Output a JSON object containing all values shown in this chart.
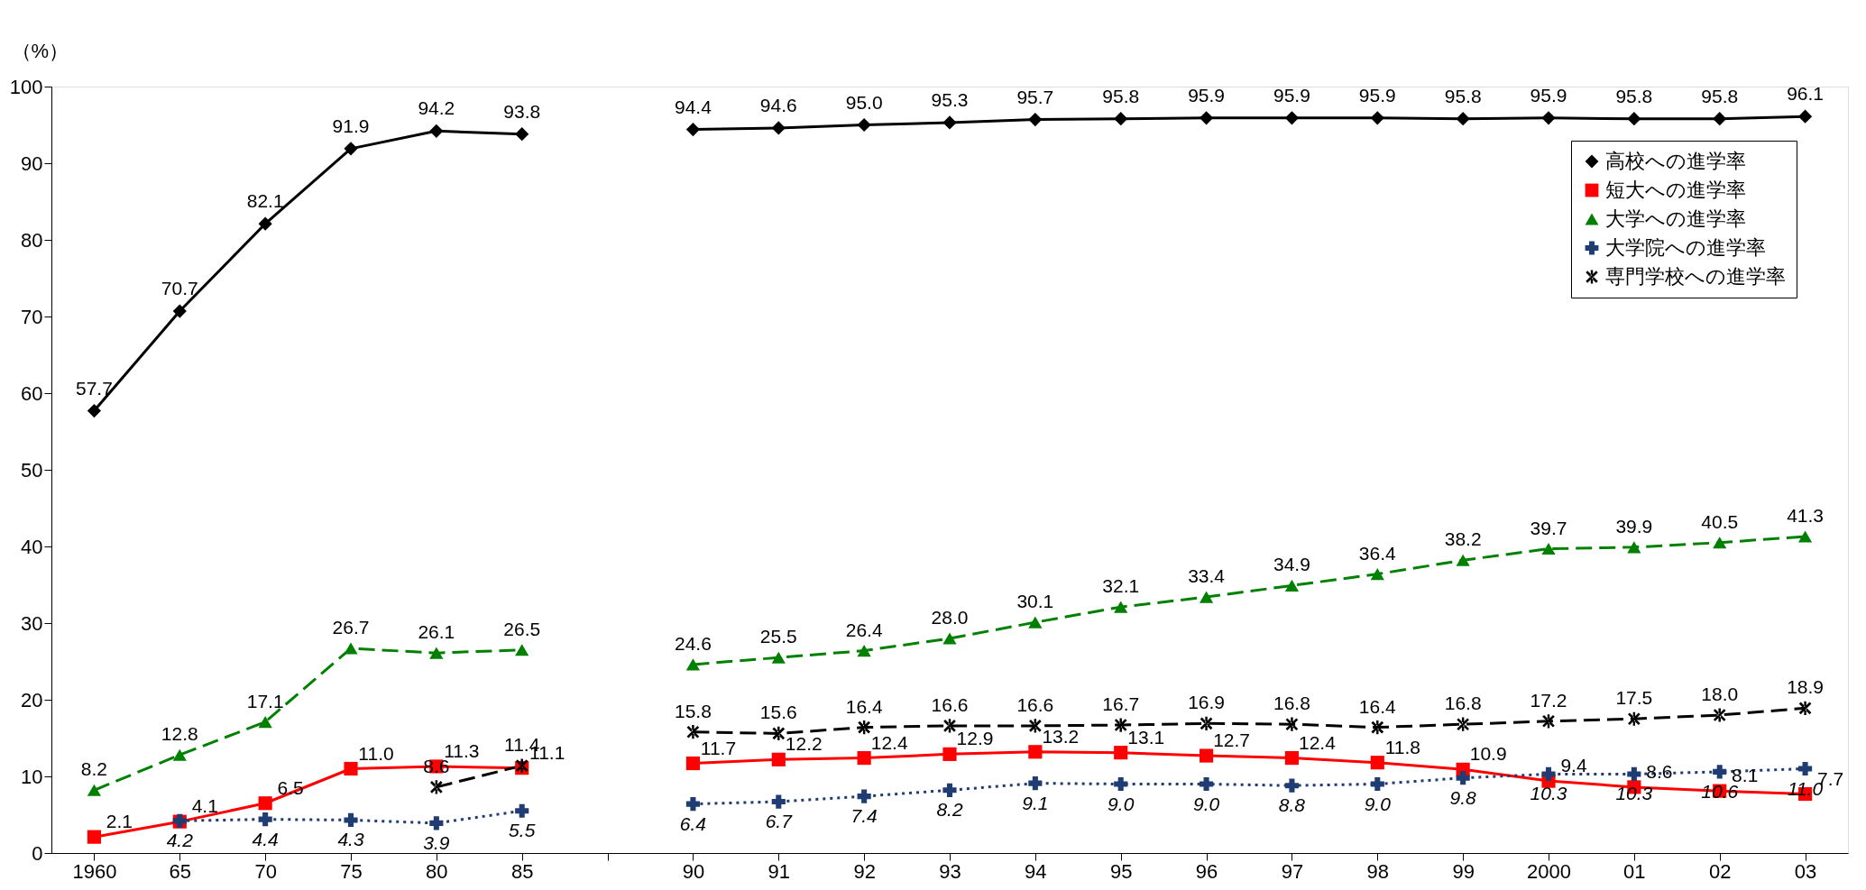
{
  "chart_data": {
    "type": "line",
    "ylabel": "（%）",
    "categories": [
      "1960",
      "65",
      "70",
      "75",
      "80",
      "85",
      null,
      "90",
      "91",
      "92",
      "93",
      "94",
      "95",
      "96",
      "97",
      "98",
      "99",
      "2000",
      "01",
      "02",
      "03"
    ],
    "series": [
      {
        "name": "高校への進学率",
        "color": "#000000",
        "marker": "diamond",
        "line_style": "solid",
        "values": [
          57.7,
          70.7,
          82.1,
          91.9,
          94.2,
          93.8,
          null,
          94.4,
          94.6,
          95.0,
          95.3,
          95.7,
          95.8,
          95.9,
          95.9,
          95.9,
          95.8,
          95.9,
          95.8,
          95.8,
          96.1
        ],
        "value_labels": [
          "57.7",
          "70.7",
          "82.1",
          "91.9",
          "94.2",
          "93.8",
          null,
          "94.4",
          "94.6",
          "95.0",
          "95.3",
          "95.7",
          "95.8",
          "95.9",
          "95.9",
          "95.9",
          "95.8",
          "95.9",
          "95.8",
          "95.8",
          "96.1"
        ]
      },
      {
        "name": "短大への進学率",
        "color": "#ff0000",
        "marker": "square",
        "line_style": "solid",
        "values": [
          2.1,
          4.1,
          6.5,
          11.0,
          11.3,
          11.1,
          null,
          11.7,
          12.2,
          12.4,
          12.9,
          13.2,
          13.1,
          12.7,
          12.4,
          11.8,
          10.9,
          9.4,
          8.6,
          8.1,
          7.7
        ],
        "value_labels": [
          "2.1",
          "4.1",
          "6.5",
          "11.0",
          "11.3",
          "11.1",
          null,
          "11.7",
          "12.2",
          "12.4",
          "12.9",
          "13.2",
          "13.1",
          "12.7",
          "12.4",
          "11.8",
          "10.9",
          "9.4",
          "8.6",
          "8.1",
          "7.7"
        ]
      },
      {
        "name": "大学への進学率",
        "color": "#008000",
        "marker": "triangle",
        "line_style": "dashed",
        "values": [
          8.2,
          12.8,
          17.1,
          26.7,
          26.1,
          26.5,
          null,
          24.6,
          25.5,
          26.4,
          28.0,
          30.1,
          32.1,
          33.4,
          34.9,
          36.4,
          38.2,
          39.7,
          39.9,
          40.5,
          41.3
        ],
        "value_labels": [
          "8.2",
          "12.8",
          "17.1",
          "26.7",
          "26.1",
          "26.5",
          null,
          "24.6",
          "25.5",
          "26.4",
          "28.0",
          "30.1",
          "32.1",
          "33.4",
          "34.9",
          "36.4",
          "38.2",
          "39.7",
          "39.9",
          "40.5",
          "41.3"
        ]
      },
      {
        "name": "大学院への進学率",
        "color": "#1f3c73",
        "marker": "cross",
        "line_style": "dotted",
        "values": [
          null,
          4.2,
          4.4,
          4.3,
          3.9,
          5.5,
          null,
          6.4,
          6.7,
          7.4,
          8.2,
          9.1,
          9.0,
          9.0,
          8.8,
          9.0,
          9.8,
          10.3,
          10.3,
          10.6,
          11.0
        ],
        "value_labels": [
          null,
          "4.2",
          "4.4",
          "4.3",
          "3.9",
          "5.5",
          null,
          "6.4",
          "6.7",
          "7.4",
          "8.2",
          "9.1",
          "9.0",
          "9.0",
          "8.8",
          "9.0",
          "9.8",
          "10.3",
          "10.3",
          "10.6",
          "11.0"
        ]
      },
      {
        "name": "専門学校への進学率",
        "color": "#000000",
        "marker": "cross",
        "line_style": "dashed",
        "values": [
          null,
          null,
          null,
          null,
          8.6,
          11.4,
          null,
          15.8,
          15.6,
          16.4,
          16.6,
          16.6,
          16.7,
          16.9,
          16.8,
          16.4,
          16.8,
          17.2,
          17.5,
          18.0,
          18.9
        ],
        "value_labels": [
          null,
          null,
          null,
          null,
          "8.6",
          "11.4",
          null,
          "15.8",
          "15.6",
          "16.4",
          "16.6",
          "16.6",
          "16.7",
          "16.9",
          "16.8",
          "16.4",
          "16.8",
          "17.2",
          "17.5",
          "18.0",
          "18.9"
        ]
      }
    ],
    "ylim": [
      0,
      100
    ],
    "yticks": [
      0,
      10,
      20,
      30,
      40,
      50,
      60,
      70,
      80,
      90,
      100
    ],
    "legend": "top right",
    "grid": false
  }
}
